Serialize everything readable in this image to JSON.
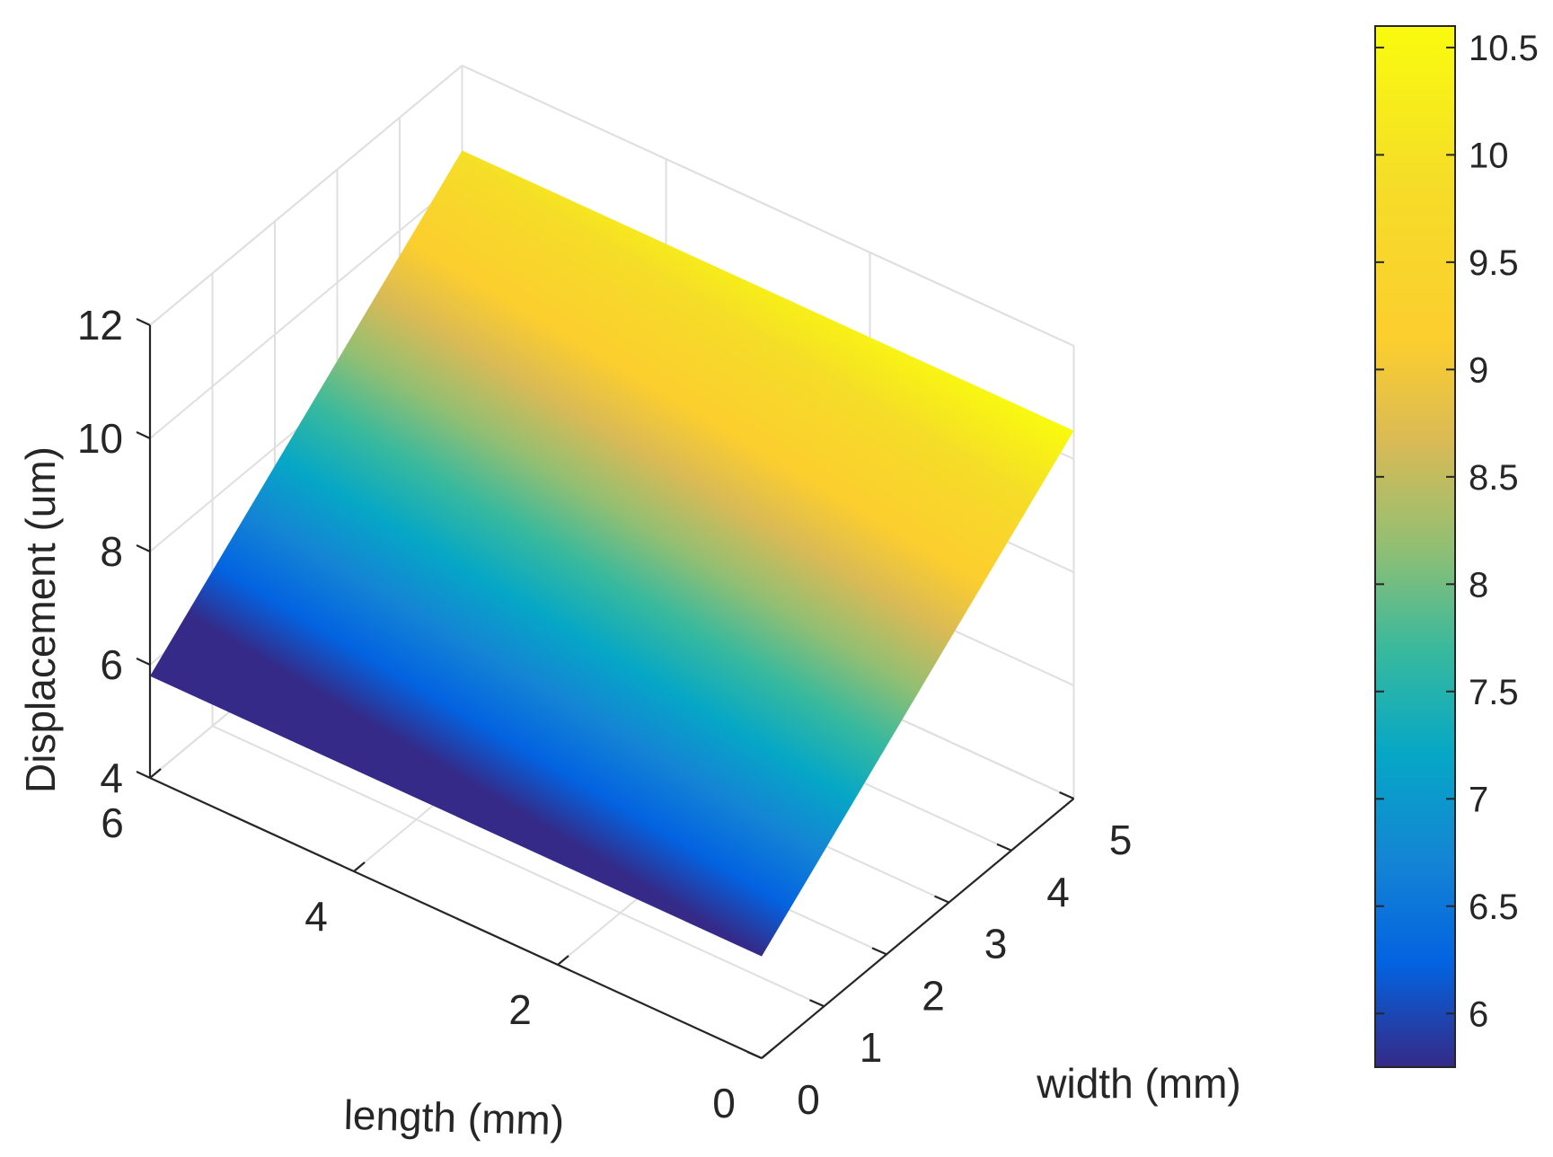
{
  "chart_data": {
    "type": "surface",
    "title": "",
    "xlabel": "length (mm)",
    "ylabel": "width (mm)",
    "zlabel": "Displacement (um)",
    "xlim": [
      0,
      6
    ],
    "ylim": [
      0,
      5
    ],
    "zlim": [
      4,
      12
    ],
    "x_ticks": [
      "0",
      "2",
      "4",
      "6"
    ],
    "y_ticks": [
      "0",
      "1",
      "2",
      "3",
      "4",
      "5"
    ],
    "z_ticks": [
      "4",
      "6",
      "8",
      "10",
      "12"
    ],
    "grid": true,
    "colormap": "parula",
    "surface": {
      "description_points": [
        {
          "length": 0,
          "width": 0,
          "displacement": 5.8
        },
        {
          "length": 6,
          "width": 0,
          "displacement": 5.8
        },
        {
          "length": 0,
          "width": 5,
          "displacement": 10.5
        },
        {
          "length": 6,
          "width": 5,
          "displacement": 10.5
        }
      ],
      "length_range": [
        0,
        6
      ],
      "width_range": [
        0,
        5
      ],
      "displacement_min": 5.8,
      "displacement_max": 10.5
    },
    "colorbar": {
      "range": [
        5.75,
        10.6
      ],
      "ticks": [
        "6",
        "6.5",
        "7",
        "7.5",
        "8",
        "8.5",
        "9",
        "9.5",
        "10",
        "10.5"
      ]
    }
  }
}
